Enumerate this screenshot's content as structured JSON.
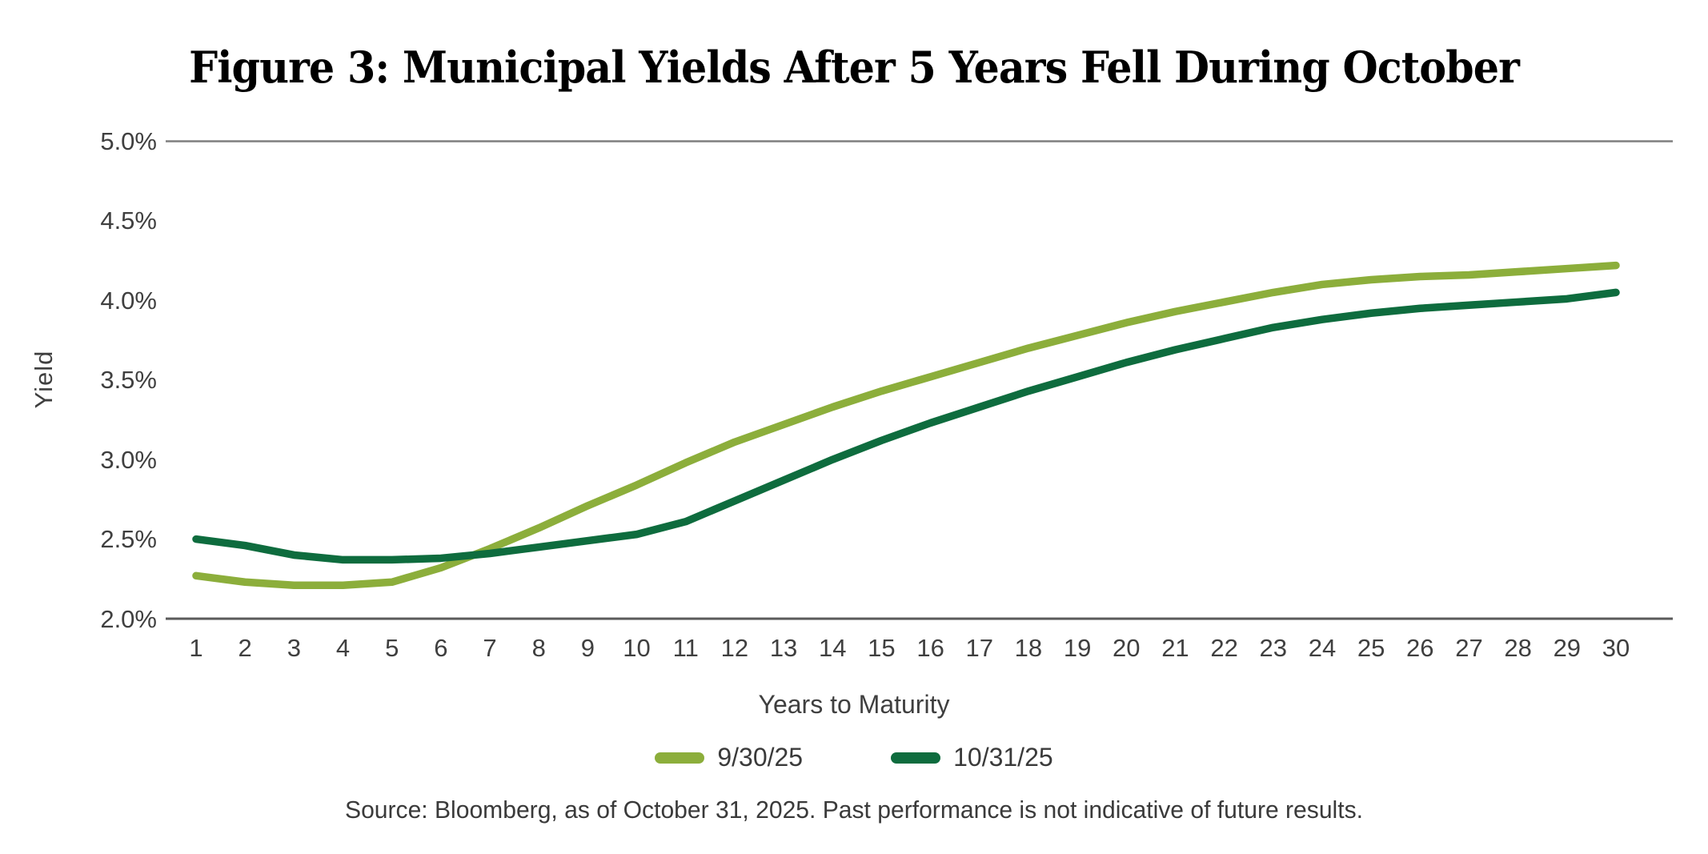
{
  "title": "Figure 3: Municipal Yields After 5 Years Fell During October",
  "y_axis": {
    "label": "Yield",
    "ticks": [
      "5.0%",
      "4.5%",
      "4.0%",
      "3.5%",
      "3.0%",
      "2.5%",
      "2.0%"
    ]
  },
  "x_axis": {
    "label": "Years to Maturity",
    "ticks": [
      "1",
      "2",
      "3",
      "4",
      "5",
      "6",
      "7",
      "8",
      "9",
      "10",
      "11",
      "12",
      "13",
      "14",
      "15",
      "16",
      "17",
      "18",
      "19",
      "20",
      "21",
      "22",
      "23",
      "24",
      "25",
      "26",
      "27",
      "28",
      "29",
      "30"
    ]
  },
  "legend": [
    {
      "label": "9/30/25",
      "color": "#8CAE3B"
    },
    {
      "label": "10/31/25",
      "color": "#0E6C3E"
    }
  ],
  "source": "Source: Bloomberg, as of October 31, 2025. Past performance is not indicative of future results.",
  "colors": {
    "series_light_green": "#8CAE3B",
    "series_dark_green": "#0E6C3E",
    "top_gridline": "#7f7f7f",
    "baseline": "#5a5a5a",
    "tick_text": "#3f3f3f",
    "title_text": "#000000"
  },
  "chart_data": {
    "type": "line",
    "title": "Figure 3: Municipal Yields After 5 Years Fell During October",
    "xlabel": "Years to Maturity",
    "ylabel": "Yield",
    "x": [
      1,
      2,
      3,
      4,
      5,
      6,
      7,
      8,
      9,
      10,
      11,
      12,
      13,
      14,
      15,
      16,
      17,
      18,
      19,
      20,
      21,
      22,
      23,
      24,
      25,
      26,
      27,
      28,
      29,
      30
    ],
    "ylim": [
      2.0,
      5.0
    ],
    "y_tick_interval": 0.5,
    "grid": "horizontal line at 5.0% top and 2.0% baseline only",
    "legend_position": "bottom-center",
    "series": [
      {
        "name": "9/30/25",
        "color": "#8CAE3B",
        "values": [
          2.27,
          2.23,
          2.21,
          2.21,
          2.23,
          2.32,
          2.44,
          2.57,
          2.71,
          2.84,
          2.98,
          3.11,
          3.22,
          3.33,
          3.43,
          3.52,
          3.61,
          3.7,
          3.78,
          3.86,
          3.93,
          3.99,
          4.05,
          4.1,
          4.13,
          4.15,
          4.16,
          4.18,
          4.2,
          4.22
        ]
      },
      {
        "name": "10/31/25",
        "color": "#0E6C3E",
        "values": [
          2.5,
          2.46,
          2.4,
          2.37,
          2.37,
          2.38,
          2.41,
          2.45,
          2.49,
          2.53,
          2.61,
          2.74,
          2.87,
          3.0,
          3.12,
          3.23,
          3.33,
          3.43,
          3.52,
          3.61,
          3.69,
          3.76,
          3.83,
          3.88,
          3.92,
          3.95,
          3.97,
          3.99,
          4.01,
          4.05
        ]
      }
    ]
  }
}
